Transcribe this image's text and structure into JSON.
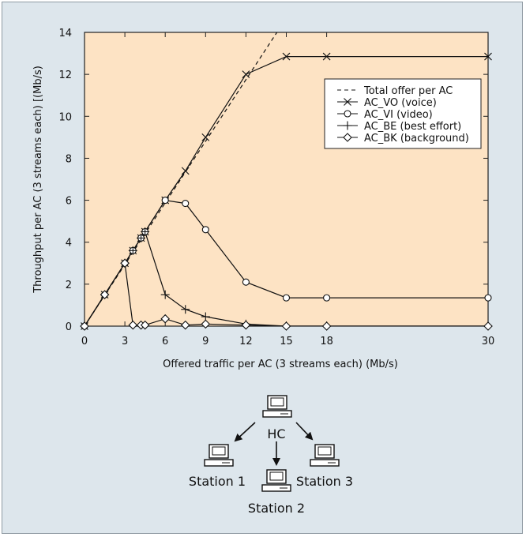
{
  "chart_data": {
    "type": "line",
    "xlabel": "Offered traffic per AC (3 streams each) (Mb/s)",
    "ylabel": "Throughput per AC (3 streams each) [(Mb/s)",
    "xlim": [
      0,
      30
    ],
    "ylim": [
      0,
      14
    ],
    "xticks": [
      "0",
      "3",
      "6",
      "9",
      "12",
      "15",
      "18",
      "30"
    ],
    "xtick_values": [
      0,
      3,
      6,
      9,
      12,
      15,
      18,
      30
    ],
    "yticks": [
      "0",
      "2",
      "4",
      "6",
      "8",
      "10",
      "12",
      "14"
    ],
    "ytick_values": [
      0,
      2,
      4,
      6,
      8,
      10,
      12,
      14
    ],
    "legend_position": "upper-right",
    "grid": false,
    "plot_background": "#fde3c4",
    "series": [
      {
        "name": "Total offer per AC",
        "marker": "none",
        "dash": true,
        "x": [
          0,
          14.3
        ],
        "y": [
          0,
          14
        ]
      },
      {
        "name": "AC_VO (voice)",
        "marker": "x",
        "dash": false,
        "x": [
          0,
          1.5,
          3,
          3.6,
          4.2,
          4.5,
          6,
          7.5,
          9,
          12,
          15,
          18,
          30
        ],
        "y": [
          0,
          1.5,
          3,
          3.6,
          4.2,
          4.5,
          6,
          7.4,
          9,
          12,
          12.85,
          12.85,
          12.85
        ]
      },
      {
        "name": "AC_VI (video)",
        "marker": "circle",
        "dash": false,
        "x": [
          0,
          1.5,
          3,
          3.6,
          4.2,
          4.5,
          6,
          7.5,
          9,
          12,
          15,
          18,
          30
        ],
        "y": [
          0,
          1.5,
          3,
          3.6,
          4.2,
          4.5,
          6,
          5.85,
          4.6,
          2.1,
          1.35,
          1.35,
          1.35
        ]
      },
      {
        "name": "AC_BE (best effort)",
        "marker": "plus",
        "dash": false,
        "x": [
          0,
          1.5,
          3,
          3.6,
          4.2,
          4.5,
          6,
          7.5,
          9,
          12,
          15,
          18,
          30
        ],
        "y": [
          0,
          1.5,
          3,
          3.6,
          4.2,
          4.5,
          1.5,
          0.8,
          0.45,
          0.1,
          0,
          0,
          0
        ]
      },
      {
        "name": "AC_BK (background)",
        "marker": "diamond",
        "dash": false,
        "x": [
          0,
          1.5,
          3,
          3.6,
          4.2,
          4.5,
          6,
          7.5,
          9,
          12,
          15,
          18,
          30
        ],
        "y": [
          0,
          1.5,
          3,
          0.05,
          0.05,
          0.05,
          0.35,
          0.05,
          0.1,
          0.05,
          0,
          0,
          0
        ]
      }
    ]
  },
  "diagram": {
    "hc_label": "HC",
    "stations": [
      "Station 1",
      "Station 2",
      "Station 3"
    ]
  },
  "colors": {
    "panel": "#dde6ec",
    "plot_bg": "#fde3c4",
    "ink": "#111111"
  }
}
